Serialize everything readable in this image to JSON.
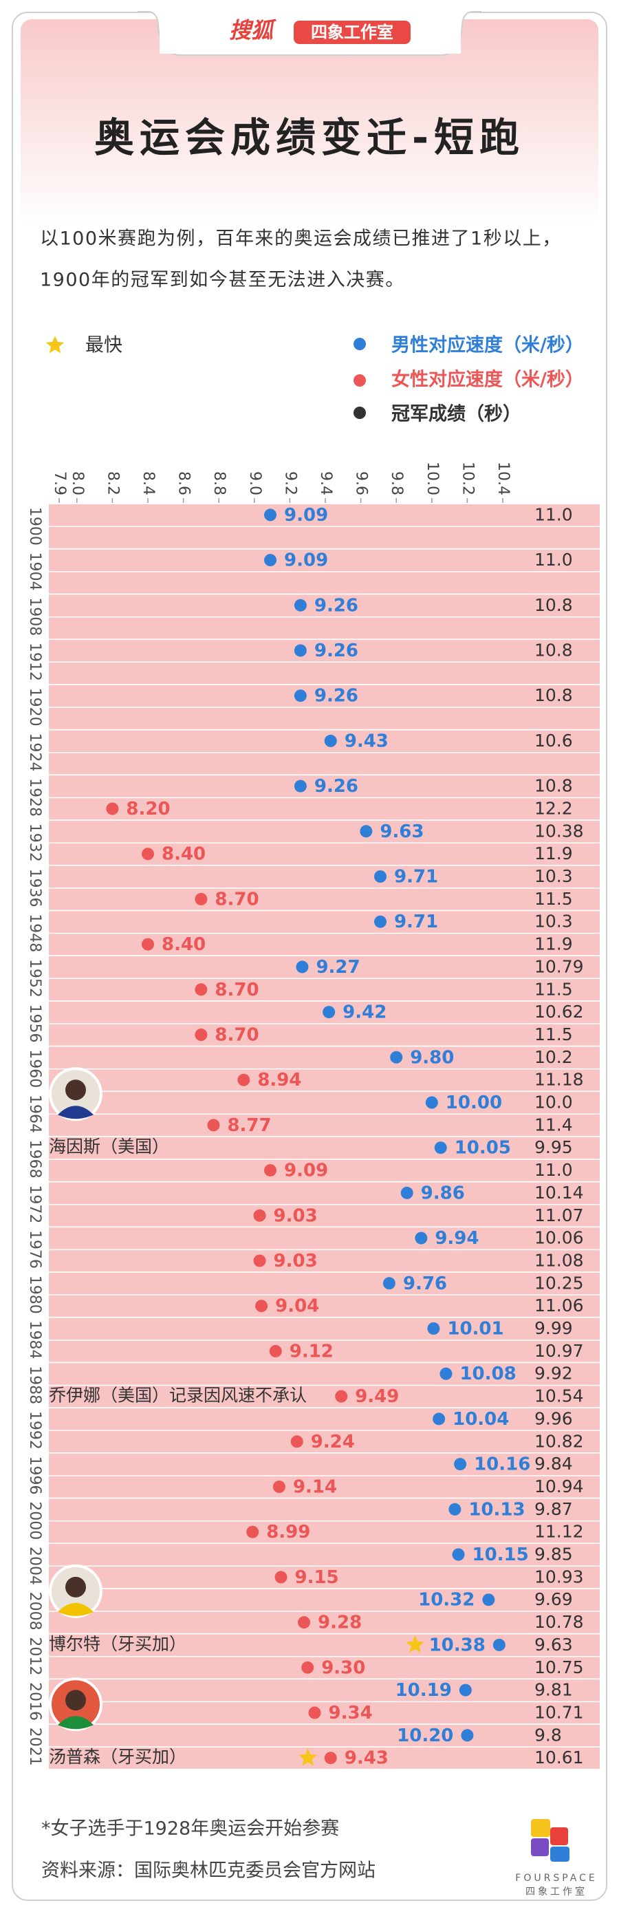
{
  "header": {
    "brand": "搜狐",
    "studio": "四象工作室"
  },
  "chart_data": {
    "type": "dot",
    "title": "奥运会成绩变迁-短跑",
    "intro": [
      "以100米赛跑为例，百年来的奥运会成绩已推进了1秒以上，",
      "1900年的冠军到如今甚至无法进入决赛。"
    ],
    "fastest_legend": "最快",
    "time_legend": "冠军成绩（秒）",
    "time_color": "#333333",
    "categories": [
      "1900",
      "1904",
      "1908",
      "1912",
      "1920",
      "1924",
      "1928",
      "1932",
      "1936",
      "1948",
      "1952",
      "1956",
      "1960",
      "1964",
      "1968",
      "1972",
      "1976",
      "1980",
      "1984",
      "1988",
      "1992",
      "1996",
      "2000",
      "2004",
      "2008",
      "2012",
      "2016",
      "2021"
    ],
    "xlim": [
      7.9,
      10.4
    ],
    "xticks": [
      7.9,
      {
        "value": 8,
        "label": "8.0"
      },
      8.2,
      8.4,
      8.6,
      8.8,
      {
        "value": 9,
        "label": "9.0"
      },
      9.2,
      9.4,
      9.6,
      9.8,
      {
        "value": 10,
        "label": "10.0"
      },
      10.2,
      10.4
    ],
    "series": [
      {
        "name": "男性对应速度（米/秒）",
        "color": "#2f7fd9",
        "values": [
          9.09,
          9.09,
          9.26,
          9.26,
          9.26,
          9.43,
          9.26,
          9.63,
          9.71,
          9.71,
          9.27,
          9.42,
          9.8,
          10,
          10.05,
          9.86,
          9.94,
          9.76,
          10.01,
          10.08,
          10.04,
          10.16,
          10.13,
          10.15,
          10.32,
          10.38,
          10.19,
          10.2
        ],
        "value_labels": [
          "9.09",
          "9.09",
          "9.26",
          "9.26",
          "9.26",
          "9.43",
          "9.26",
          "9.63",
          "9.71",
          "9.71",
          "9.27",
          "9.42",
          "9.80",
          "10.00",
          "10.05",
          "9.86",
          "9.94",
          "9.76",
          "10.01",
          "10.08",
          "10.04",
          "10.16",
          "10.13",
          "10.15",
          "10.32",
          "10.38",
          "10.19",
          "10.20"
        ],
        "times": [
          "11.0",
          "11.0",
          "10.8",
          "10.8",
          "10.8",
          "10.6",
          "10.8",
          "10.38",
          "10.3",
          "10.3",
          "10.79",
          "10.62",
          "10.2",
          "10.0",
          "9.95",
          "10.14",
          "10.06",
          "10.25",
          "9.99",
          "9.92",
          "9.96",
          "9.84",
          "9.87",
          "9.85",
          "9.69",
          "9.63",
          "9.81",
          "9.8"
        ]
      },
      {
        "name": "女性对应速度（米/秒）",
        "color": "#ec5656",
        "values": [
          null,
          null,
          null,
          null,
          null,
          null,
          8.2,
          8.4,
          8.7,
          8.4,
          8.7,
          8.7,
          8.94,
          8.77,
          9.09,
          9.03,
          9.03,
          9.04,
          9.12,
          9.49,
          9.24,
          9.14,
          8.99,
          9.15,
          9.28,
          9.3,
          9.34,
          9.43
        ],
        "value_labels": [
          null,
          null,
          null,
          null,
          null,
          null,
          "8.20",
          "8.40",
          "8.70",
          "8.40",
          "8.70",
          "8.70",
          "8.94",
          "8.77",
          "9.09",
          "9.03",
          "9.03",
          "9.04",
          "9.12",
          "9.49",
          "9.24",
          "9.14",
          "8.99",
          "9.15",
          "9.28",
          "9.30",
          "9.34",
          "9.43"
        ],
        "times": [
          null,
          null,
          null,
          null,
          null,
          null,
          "12.2",
          "11.9",
          "11.5",
          "11.9",
          "11.5",
          "11.5",
          "11.18",
          "11.4",
          "11.0",
          "11.07",
          "11.08",
          "11.06",
          "10.97",
          "10.54",
          "10.82",
          "10.94",
          "11.12",
          "10.93",
          "10.78",
          "10.75",
          "10.71",
          "10.61"
        ]
      }
    ],
    "annotations": [
      "海因斯（美国）",
      "乔伊娜（美国）记录因风速不承认",
      "博尔特（牙买加）",
      "汤普森（牙买加）"
    ]
  },
  "footer": {
    "note": "*女子选手于1928年奥运会开始参赛",
    "source": "资料来源：国际奥林匹克委员会官方网站",
    "logo_en": "FOURSPACE",
    "logo_cn": "四象工作室"
  }
}
